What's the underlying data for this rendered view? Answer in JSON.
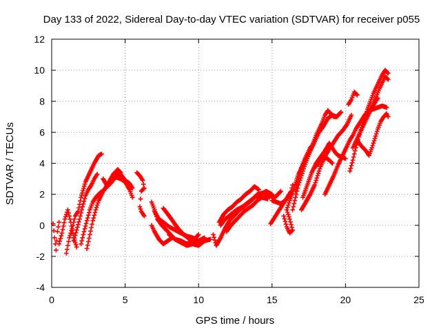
{
  "chart_data": {
    "type": "scatter",
    "title": "Day 133 of 2022, Sidereal Day-to-day VTEC variation (SDTVAR) for receiver p055",
    "xlabel": "GPS time / hours",
    "ylabel": "SDTVAR / TECUs",
    "xlim": [
      0,
      25
    ],
    "ylim": [
      -4,
      12
    ],
    "xticks": [
      0,
      5,
      10,
      15,
      20,
      25
    ],
    "yticks": [
      -4,
      -2,
      0,
      2,
      4,
      6,
      8,
      10,
      12
    ],
    "grid": true,
    "marker": "plus",
    "color": "#ff0000",
    "tracks": [
      [
        [
          0.1,
          0.1
        ],
        [
          0.2,
          -0.8
        ],
        [
          0.3,
          -1.6
        ],
        [
          0.4,
          -0.4
        ],
        [
          0.5,
          0.2
        ]
      ],
      [
        [
          0.5,
          -1.2
        ],
        [
          0.7,
          -0.5
        ],
        [
          0.9,
          0.4
        ],
        [
          1.1,
          1.0
        ],
        [
          1.3,
          0.2
        ],
        [
          1.5,
          -0.8
        ],
        [
          1.7,
          -1.4
        ]
      ],
      [
        [
          1.0,
          -1.8
        ],
        [
          1.2,
          -0.8
        ],
        [
          1.4,
          -0.2
        ],
        [
          1.6,
          0.6
        ],
        [
          1.8,
          0.9
        ],
        [
          2.0,
          1.8
        ],
        [
          2.3,
          2.8
        ],
        [
          2.6,
          3.4
        ],
        [
          2.9,
          4.0
        ],
        [
          3.2,
          4.5
        ],
        [
          3.4,
          4.6
        ]
      ],
      [
        [
          1.5,
          -1.0
        ],
        [
          1.7,
          -0.3
        ],
        [
          1.9,
          0.4
        ],
        [
          2.1,
          1.2
        ],
        [
          2.3,
          1.9
        ],
        [
          2.5,
          2.3
        ],
        [
          2.7,
          2.6
        ],
        [
          2.9,
          3.0
        ],
        [
          3.1,
          3.3
        ]
      ],
      [
        [
          2.0,
          -1.2
        ],
        [
          2.2,
          -0.4
        ],
        [
          2.4,
          0.3
        ],
        [
          2.6,
          1.0
        ],
        [
          2.8,
          1.5
        ],
        [
          3.0,
          1.8
        ],
        [
          3.3,
          2.1
        ],
        [
          3.6,
          2.3
        ],
        [
          3.9,
          2.8
        ],
        [
          4.2,
          3.3
        ],
        [
          4.5,
          3.6
        ],
        [
          4.7,
          3.4
        ]
      ],
      [
        [
          2.4,
          -1.5
        ],
        [
          2.6,
          -0.6
        ],
        [
          2.8,
          0.3
        ],
        [
          3.0,
          1.0
        ],
        [
          3.2,
          1.6
        ],
        [
          3.5,
          2.2
        ],
        [
          3.8,
          2.6
        ],
        [
          4.1,
          2.9
        ],
        [
          4.4,
          3.1
        ],
        [
          4.7,
          3.0
        ],
        [
          5.0,
          2.8
        ],
        [
          5.3,
          2.3
        ],
        [
          5.5,
          1.8
        ]
      ],
      [
        [
          3.5,
          3.0
        ],
        [
          3.8,
          2.5
        ],
        [
          4.1,
          2.8
        ],
        [
          4.4,
          3.4
        ],
        [
          4.7,
          3.3
        ],
        [
          5.0,
          2.9
        ],
        [
          5.3,
          2.7
        ],
        [
          5.5,
          2.4
        ]
      ],
      [
        [
          5.8,
          3.4
        ],
        [
          6.0,
          3.2
        ],
        [
          6.2,
          2.9
        ],
        [
          6.3,
          2.4
        ],
        [
          6.1,
          2.2
        ],
        [
          6.0,
          1.2
        ],
        [
          6.1,
          0.9
        ],
        [
          6.3,
          0.6
        ]
      ],
      [
        [
          6.8,
          0.0
        ],
        [
          7.0,
          -0.4
        ],
        [
          7.3,
          -0.9
        ],
        [
          7.6,
          -1.2
        ],
        [
          7.9,
          -1.0
        ],
        [
          8.2,
          -0.8
        ]
      ],
      [
        [
          6.8,
          1.5
        ],
        [
          7.0,
          1.0
        ],
        [
          7.2,
          0.4
        ],
        [
          7.5,
          0.0
        ],
        [
          7.8,
          -0.3
        ],
        [
          8.1,
          -0.6
        ],
        [
          8.4,
          -0.9
        ],
        [
          8.8,
          -1.1
        ],
        [
          9.2,
          -1.3
        ],
        [
          9.6,
          -1.2
        ],
        [
          10.0,
          -1.3
        ],
        [
          10.4,
          -1.0
        ],
        [
          10.8,
          -0.9
        ]
      ],
      [
        [
          7.0,
          0.9
        ],
        [
          7.3,
          0.4
        ],
        [
          7.6,
          0.2
        ],
        [
          8.0,
          -0.1
        ],
        [
          8.4,
          -0.3
        ],
        [
          8.8,
          -0.5
        ],
        [
          9.2,
          -0.7
        ],
        [
          9.6,
          -0.8
        ],
        [
          10.0,
          -1.0
        ],
        [
          10.4,
          -0.8
        ]
      ],
      [
        [
          7.6,
          1.1
        ],
        [
          8.0,
          0.6
        ],
        [
          8.3,
          0.2
        ],
        [
          8.6,
          -0.2
        ],
        [
          9.0,
          -0.6
        ],
        [
          9.4,
          -0.9
        ],
        [
          9.8,
          -1.2
        ],
        [
          10.2,
          -1.1
        ]
      ],
      [
        [
          8.0,
          -0.6
        ],
        [
          8.4,
          -0.9
        ],
        [
          8.8,
          -1.0
        ],
        [
          9.2,
          -1.2
        ],
        [
          9.6,
          -1.0
        ],
        [
          10.0,
          -0.6
        ]
      ],
      [
        [
          11.0,
          -0.6
        ],
        [
          11.2,
          -1.3
        ],
        [
          11.5,
          -0.8
        ],
        [
          11.8,
          -0.2
        ],
        [
          12.1,
          0.3
        ],
        [
          12.4,
          0.6
        ],
        [
          12.8,
          1.0
        ],
        [
          13.2,
          1.3
        ],
        [
          13.6,
          1.6
        ],
        [
          14.0,
          2.0
        ],
        [
          14.4,
          2.1
        ],
        [
          14.8,
          1.9
        ],
        [
          15.2,
          1.8
        ],
        [
          15.6,
          2.2
        ]
      ],
      [
        [
          11.4,
          0.2
        ],
        [
          11.7,
          0.7
        ],
        [
          12.0,
          1.0
        ],
        [
          12.3,
          1.2
        ],
        [
          12.6,
          1.5
        ],
        [
          12.9,
          1.7
        ],
        [
          13.2,
          2.0
        ],
        [
          13.5,
          2.2
        ],
        [
          13.8,
          2.5
        ],
        [
          14.1,
          2.3
        ]
      ],
      [
        [
          11.5,
          0.0
        ],
        [
          11.8,
          0.4
        ],
        [
          12.2,
          0.7
        ],
        [
          12.6,
          1.0
        ],
        [
          13.0,
          1.2
        ],
        [
          13.4,
          1.5
        ],
        [
          13.8,
          1.8
        ],
        [
          14.2,
          2.0
        ],
        [
          14.6,
          2.2
        ],
        [
          15.0,
          2.0
        ]
      ],
      [
        [
          11.9,
          -0.4
        ],
        [
          12.2,
          0.0
        ],
        [
          12.5,
          0.3
        ],
        [
          12.8,
          0.6
        ],
        [
          13.1,
          0.9
        ],
        [
          13.4,
          1.1
        ],
        [
          13.7,
          1.3
        ],
        [
          14.0,
          1.6
        ],
        [
          14.3,
          1.8
        ],
        [
          14.7,
          1.7
        ]
      ],
      [
        [
          15.0,
          1.6
        ],
        [
          15.3,
          1.5
        ],
        [
          15.6,
          1.4
        ],
        [
          15.9,
          1.6
        ],
        [
          16.1,
          1.9
        ],
        [
          16.3,
          2.2
        ],
        [
          16.4,
          2.6
        ]
      ],
      [
        [
          14.9,
          0.1
        ],
        [
          15.1,
          0.4
        ],
        [
          15.3,
          0.7
        ],
        [
          15.5,
          1.0
        ],
        [
          15.7,
          1.3
        ],
        [
          15.9,
          1.6
        ],
        [
          16.1,
          1.8
        ],
        [
          16.3,
          2.0
        ]
      ],
      [
        [
          15.8,
          0.6
        ],
        [
          16.0,
          -0.1
        ],
        [
          16.2,
          -0.5
        ],
        [
          16.4,
          -0.3
        ],
        [
          16.2,
          0.4
        ],
        [
          16.0,
          1.0
        ],
        [
          16.2,
          1.6
        ],
        [
          16.5,
          2.4
        ],
        [
          16.8,
          3.3
        ],
        [
          17.1,
          3.9
        ],
        [
          17.4,
          4.5
        ],
        [
          17.7,
          5.0
        ],
        [
          17.9,
          5.4
        ]
      ],
      [
        [
          16.4,
          1.0
        ],
        [
          16.6,
          1.8
        ],
        [
          16.8,
          2.6
        ],
        [
          17.0,
          3.2
        ],
        [
          17.2,
          3.8
        ],
        [
          17.4,
          4.3
        ],
        [
          17.6,
          4.8
        ],
        [
          17.8,
          5.3
        ],
        [
          18.0,
          5.8
        ],
        [
          18.2,
          6.2
        ],
        [
          18.4,
          6.6
        ],
        [
          18.6,
          7.1
        ],
        [
          18.8,
          7.4
        ],
        [
          19.0,
          7.2
        ],
        [
          19.2,
          7.0
        ],
        [
          19.4,
          7.0
        ],
        [
          19.6,
          7.2
        ]
      ],
      [
        [
          16.6,
          2.2
        ],
        [
          16.8,
          3.0
        ],
        [
          17.0,
          3.7
        ],
        [
          17.2,
          4.2
        ],
        [
          17.4,
          4.6
        ],
        [
          17.6,
          5.0
        ],
        [
          17.8,
          5.2
        ],
        [
          18.0,
          5.6
        ],
        [
          18.2,
          6.0
        ],
        [
          18.5,
          6.4
        ],
        [
          18.8,
          6.9
        ],
        [
          19.1,
          7.1
        ],
        [
          19.4,
          7.0
        ],
        [
          19.7,
          7.3
        ]
      ],
      [
        [
          17.0,
          1.0
        ],
        [
          17.3,
          1.5
        ],
        [
          17.6,
          2.0
        ],
        [
          17.9,
          2.6
        ],
        [
          18.1,
          3.2
        ],
        [
          18.3,
          3.8
        ],
        [
          18.5,
          4.2
        ],
        [
          18.7,
          4.6
        ],
        [
          18.9,
          4.9
        ],
        [
          19.1,
          5.2
        ],
        [
          19.3,
          5.5
        ],
        [
          19.5,
          5.8
        ],
        [
          19.8,
          6.1
        ],
        [
          20.1,
          6.5
        ],
        [
          20.3,
          6.9
        ],
        [
          20.4,
          7.1
        ]
      ],
      [
        [
          17.1,
          1.8
        ],
        [
          17.4,
          2.6
        ],
        [
          17.7,
          3.4
        ],
        [
          18.0,
          4.0
        ],
        [
          18.3,
          4.4
        ],
        [
          18.6,
          4.8
        ],
        [
          18.9,
          5.3
        ],
        [
          19.1,
          5.0
        ],
        [
          19.3,
          4.7
        ],
        [
          19.5,
          4.5
        ],
        [
          19.8,
          4.4
        ],
        [
          20.0,
          4.3
        ]
      ],
      [
        [
          18.0,
          3.8
        ],
        [
          18.3,
          4.3
        ],
        [
          18.6,
          4.4
        ],
        [
          18.9,
          4.2
        ],
        [
          19.1,
          4.0
        ]
      ],
      [
        [
          18.6,
          2.0
        ],
        [
          18.9,
          2.6
        ],
        [
          19.2,
          3.2
        ],
        [
          19.5,
          3.9
        ],
        [
          19.8,
          4.5
        ],
        [
          20.1,
          5.1
        ],
        [
          20.3,
          5.5
        ],
        [
          20.5,
          5.8
        ],
        [
          20.7,
          6.2
        ],
        [
          20.9,
          6.5
        ],
        [
          21.1,
          6.8
        ],
        [
          21.3,
          7.1
        ],
        [
          21.6,
          7.4
        ],
        [
          21.9,
          7.5
        ],
        [
          22.2,
          7.6
        ],
        [
          22.5,
          7.7
        ],
        [
          22.8,
          7.6
        ]
      ],
      [
        [
          20.3,
          3.5
        ],
        [
          20.5,
          4.2
        ],
        [
          20.7,
          5.0
        ],
        [
          20.9,
          5.7
        ],
        [
          21.1,
          6.3
        ],
        [
          21.3,
          6.9
        ],
        [
          21.5,
          7.5
        ],
        [
          21.7,
          8.0
        ],
        [
          21.9,
          8.5
        ],
        [
          22.1,
          8.9
        ],
        [
          22.3,
          9.3
        ],
        [
          22.5,
          9.7
        ],
        [
          22.7,
          10.0
        ],
        [
          22.9,
          9.8
        ]
      ],
      [
        [
          20.5,
          5.0
        ],
        [
          20.7,
          5.4
        ],
        [
          20.9,
          5.8
        ],
        [
          21.1,
          6.2
        ],
        [
          21.3,
          6.6
        ],
        [
          21.5,
          7.0
        ],
        [
          21.7,
          7.4
        ],
        [
          21.9,
          7.9
        ],
        [
          22.1,
          8.3
        ],
        [
          22.3,
          8.8
        ],
        [
          22.5,
          9.2
        ],
        [
          22.7,
          9.6
        ],
        [
          22.9,
          9.4
        ]
      ],
      [
        [
          20.8,
          5.5
        ],
        [
          21.0,
          5.2
        ],
        [
          21.2,
          5.0
        ],
        [
          21.4,
          4.8
        ],
        [
          21.6,
          4.5
        ],
        [
          21.8,
          5.0
        ],
        [
          22.0,
          5.6
        ],
        [
          22.2,
          6.2
        ],
        [
          22.4,
          6.7
        ],
        [
          22.6,
          7.0
        ],
        [
          22.8,
          7.2
        ],
        [
          22.9,
          7.0
        ]
      ],
      [
        [
          20.2,
          7.8
        ],
        [
          20.4,
          8.1
        ],
        [
          20.6,
          8.6
        ],
        [
          20.8,
          8.4
        ]
      ],
      [
        [
          21.6,
          7.3
        ],
        [
          21.8,
          7.6
        ],
        [
          22.0,
          7.9
        ],
        [
          22.2,
          8.2
        ]
      ]
    ]
  }
}
